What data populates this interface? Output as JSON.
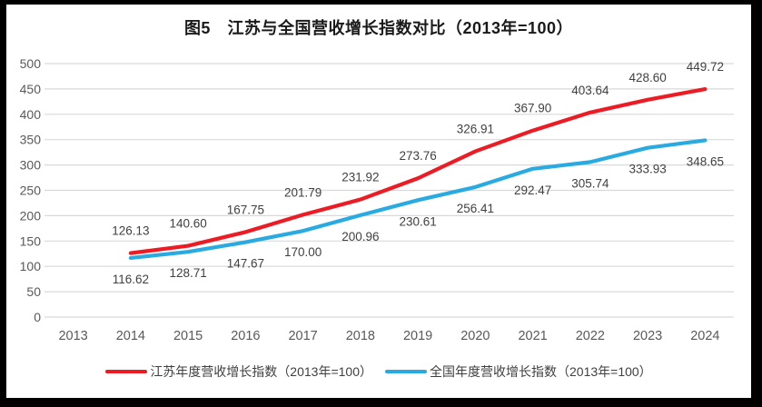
{
  "title": "图5　江苏与全国营收增长指数对比（2013年=100）",
  "chart_data": {
    "type": "line",
    "title": "图5　江苏与全国营收增长指数对比（2013年=100）",
    "categories": [
      "2013",
      "2014",
      "2015",
      "2016",
      "2017",
      "2018",
      "2019",
      "2020",
      "2021",
      "2022",
      "2023",
      "2024"
    ],
    "series": [
      {
        "name": "江苏年度营收增长指数（2013年=100）",
        "color": "#ed1c24",
        "label_position": "above",
        "values": [
          null,
          126.13,
          140.6,
          167.75,
          201.79,
          231.92,
          273.76,
          326.91,
          367.9,
          403.64,
          428.6,
          449.72
        ]
      },
      {
        "name": "全国年度营收增长指数（2013年=100）",
        "color": "#29abe2",
        "label_position": "below",
        "values": [
          null,
          116.62,
          128.71,
          147.67,
          170.0,
          200.96,
          230.61,
          256.41,
          292.47,
          305.74,
          333.93,
          348.65
        ]
      }
    ],
    "xlabel": "",
    "ylabel": "",
    "ylim": [
      0,
      500
    ],
    "yticks": [
      0,
      50,
      100,
      150,
      200,
      250,
      300,
      350,
      400,
      450,
      500
    ],
    "grid": "horizontal",
    "data_labels": true,
    "legend_position": "bottom"
  },
  "colors": {
    "page_background": "#000000",
    "chart_background": "#ffffff",
    "gridline": "#d9d9d9",
    "axis_text": "#595959",
    "data_label_text": "#404040",
    "title_text": "#1a1a1a",
    "series_jiangsu": "#ed1c24",
    "series_national": "#29abe2"
  }
}
